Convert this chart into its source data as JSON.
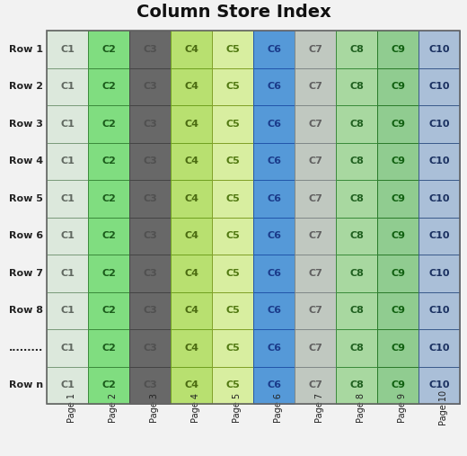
{
  "title": "Column Store Index",
  "rows": [
    "Row 1",
    "Row 2",
    "Row 3",
    "Row 4",
    "Row 5",
    "Row 6",
    "Row 7",
    "Row 8",
    ".........",
    "Row n"
  ],
  "cols": [
    "C1",
    "C2",
    "C3",
    "C4",
    "C5",
    "C6",
    "C7",
    "C8",
    "C9",
    "C10"
  ],
  "pages": [
    "Page 1",
    "Page 2",
    "Page 3",
    "Page 4",
    "Page 5",
    "Page 6",
    "Page 7",
    "Page 8",
    "Page 9",
    "Page 10"
  ],
  "col_colors": [
    "#dce8dc",
    "#80dd80",
    "#686868",
    "#b8e070",
    "#d8eea0",
    "#5599d8",
    "#c0c8c0",
    "#a8d8a0",
    "#90cc90",
    "#aabfd8"
  ],
  "col_border_colors": [
    "#7a9a7a",
    "#3a8a3a",
    "#444444",
    "#70a020",
    "#80a028",
    "#2255aa",
    "#808888",
    "#3a8a3a",
    "#2a7a2a",
    "#3a5a8a"
  ],
  "text_colors": [
    "#606860",
    "#1a5a1a",
    "#505050",
    "#4a6a10",
    "#507810",
    "#1a3a8a",
    "#606060",
    "#206020",
    "#106010",
    "#1a3060"
  ],
  "background_color": "#f2f2f2",
  "outer_border_color": "#666666",
  "title_fontsize": 14,
  "cell_label_fontsize": 8,
  "row_label_fontsize": 8,
  "page_label_fontsize": 7
}
